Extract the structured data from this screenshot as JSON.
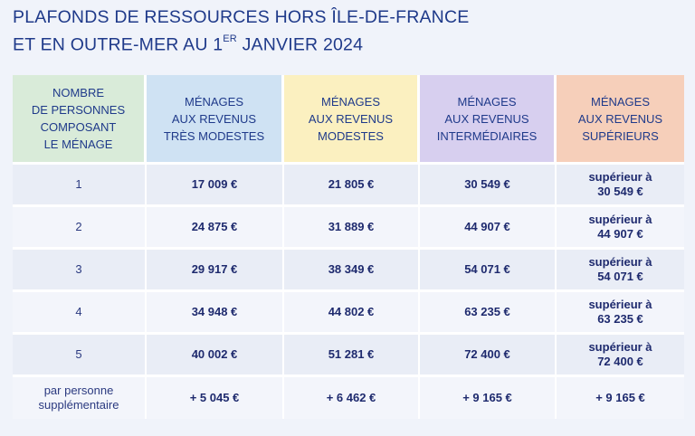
{
  "title": {
    "line1": "PLAFONDS DE RESSOURCES HORS ÎLE-DE-FRANCE",
    "line2_pre": "ET EN OUTRE-MER AU 1",
    "line2_sup": "ER",
    "line2_post": " JANVIER 2024"
  },
  "headers": [
    [
      "NOMBRE",
      "DE PERSONNES",
      "COMPOSANT",
      "LE MÉNAGE"
    ],
    [
      "MÉNAGES",
      "AUX REVENUS",
      "TRÈS MODESTES"
    ],
    [
      "MÉNAGES",
      "AUX REVENUS",
      "MODESTES"
    ],
    [
      "MÉNAGES",
      "AUX REVENUS",
      "INTERMÉDIAIRES"
    ],
    [
      "MÉNAGES",
      "AUX REVENUS",
      "SUPÉRIEURS"
    ]
  ],
  "colors": {
    "col0": "#d9ebd9",
    "col1": "#cfe2f3",
    "col2": "#fbf0c0",
    "col3": "#d7cfef",
    "col4": "#f6cfba",
    "text": "#1f3a8a"
  },
  "rows": [
    {
      "persons": "1",
      "tres_modestes": "17 009 €",
      "modestes": "21 805 €",
      "intermediaires": "30 549 €",
      "superieurs_1": "supérieur à",
      "superieurs_2": "30 549 €"
    },
    {
      "persons": "2",
      "tres_modestes": "24 875 €",
      "modestes": "31 889 €",
      "intermediaires": "44 907 €",
      "superieurs_1": "supérieur à",
      "superieurs_2": "44 907 €"
    },
    {
      "persons": "3",
      "tres_modestes": "29 917 €",
      "modestes": "38 349 €",
      "intermediaires": "54 071 €",
      "superieurs_1": "supérieur à",
      "superieurs_2": "54 071 €"
    },
    {
      "persons": "4",
      "tres_modestes": "34 948 €",
      "modestes": "44 802 €",
      "intermediaires": "63 235 €",
      "superieurs_1": "supérieur à",
      "superieurs_2": "63 235 €"
    },
    {
      "persons": "5",
      "tres_modestes": "40 002 €",
      "modestes": "51 281 €",
      "intermediaires": "72 400 €",
      "superieurs_1": "supérieur à",
      "superieurs_2": "72 400 €"
    }
  ],
  "extra": {
    "label_1": "par personne",
    "label_2": "supplémentaire",
    "tres_modestes": "+ 5 045 €",
    "modestes": "+ 6 462 €",
    "intermediaires": "+ 9 165 €",
    "superieurs": "+ 9 165 €"
  }
}
